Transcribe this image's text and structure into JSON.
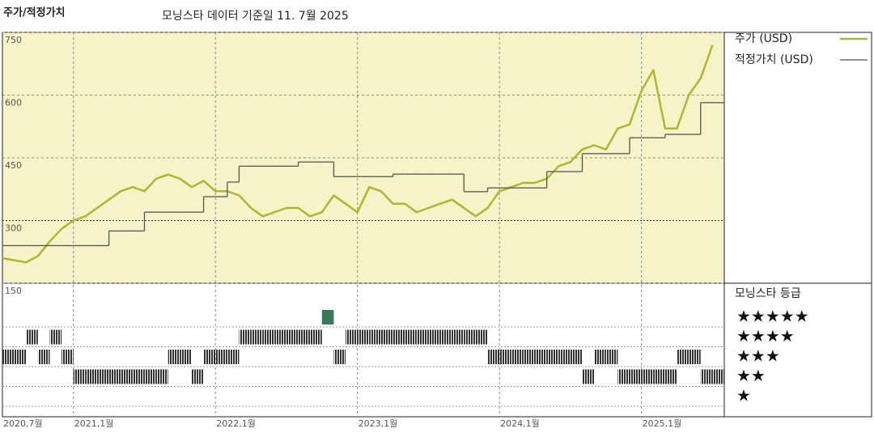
{
  "chart_data": {
    "type": "line",
    "title": "주가/적정가치",
    "subtitle": "모닝스타 데이터 기준일 11. 7월 2025",
    "x": [
      "2020-07",
      "2020-08",
      "2020-09",
      "2020-10",
      "2020-11",
      "2020-12",
      "2021-01",
      "2021-02",
      "2021-03",
      "2021-04",
      "2021-05",
      "2021-06",
      "2021-07",
      "2021-08",
      "2021-09",
      "2021-10",
      "2021-11",
      "2021-12",
      "2022-01",
      "2022-02",
      "2022-03",
      "2022-04",
      "2022-05",
      "2022-06",
      "2022-07",
      "2022-08",
      "2022-09",
      "2022-10",
      "2022-11",
      "2022-12",
      "2023-01",
      "2023-02",
      "2023-03",
      "2023-04",
      "2023-05",
      "2023-06",
      "2023-07",
      "2023-08",
      "2023-09",
      "2023-10",
      "2023-11",
      "2023-12",
      "2024-01",
      "2024-02",
      "2024-03",
      "2024-04",
      "2024-05",
      "2024-06",
      "2024-07",
      "2024-08",
      "2024-09",
      "2024-10",
      "2024-11",
      "2024-12",
      "2025-01",
      "2025-02",
      "2025-03",
      "2025-04",
      "2025-05",
      "2025-06",
      "2025-07"
    ],
    "xlim": [
      "2020-07",
      "2025-08"
    ],
    "xticks": [
      {
        "value": "2020-07",
        "label": "2020,7월"
      },
      {
        "value": "2021-01",
        "label": "2021,1월"
      },
      {
        "value": "2022-01",
        "label": "2022,1월"
      },
      {
        "value": "2023-01",
        "label": "2023,1월"
      },
      {
        "value": "2024-01",
        "label": "2024,1월"
      },
      {
        "value": "2025-01",
        "label": "2025,1월"
      }
    ],
    "ylim": [
      150,
      750
    ],
    "yticks": [
      150,
      300,
      450,
      600,
      750
    ],
    "grid": true,
    "series": [
      {
        "name": "주가 (USD)",
        "color": "#a9b82c",
        "values": [
          210,
          205,
          200,
          215,
          250,
          280,
          300,
          310,
          330,
          350,
          370,
          380,
          370,
          400,
          410,
          400,
          380,
          395,
          370,
          370,
          360,
          330,
          310,
          320,
          330,
          330,
          310,
          320,
          360,
          340,
          320,
          380,
          370,
          340,
          340,
          320,
          330,
          340,
          350,
          330,
          310,
          330,
          370,
          380,
          390,
          390,
          400,
          430,
          440,
          470,
          480,
          470,
          520,
          530,
          610,
          660,
          520,
          520,
          600,
          640,
          720
        ]
      },
      {
        "name": "적정가치 (USD)",
        "color": "#555555",
        "step": true,
        "values": [
          240,
          240,
          240,
          240,
          240,
          240,
          240,
          240,
          240,
          275,
          275,
          275,
          320,
          320,
          320,
          320,
          320,
          357,
          357,
          392,
          430,
          430,
          430,
          430,
          430,
          440,
          440,
          440,
          405,
          405,
          405,
          405,
          405,
          411,
          411,
          411,
          411,
          411,
          411,
          369,
          369,
          378,
          378,
          378,
          378,
          378,
          417,
          417,
          417,
          460,
          460,
          460,
          460,
          498,
          498,
          498,
          506,
          506,
          506,
          582,
          582
        ]
      }
    ],
    "rating": {
      "title": "모닝스타 등급",
      "labels": [
        "★★★★★",
        "★★★★",
        "★★★",
        "★★",
        "★"
      ],
      "levels": [
        5,
        4,
        3,
        2,
        1
      ],
      "color": "#333333",
      "top_color": "#3a7a5a",
      "values": [
        3,
        3,
        4,
        3,
        4,
        3,
        2,
        2,
        2,
        2,
        2,
        2,
        2,
        2,
        3,
        3,
        2,
        3,
        3,
        3,
        4,
        4,
        4,
        4,
        4,
        4,
        4,
        5,
        3,
        4,
        4,
        4,
        4,
        4,
        4,
        4,
        4,
        4,
        4,
        4,
        4,
        3,
        3,
        3,
        3,
        3,
        3,
        3,
        3,
        2,
        3,
        3,
        2,
        2,
        2,
        2,
        2,
        3,
        3,
        2,
        2
      ]
    }
  }
}
